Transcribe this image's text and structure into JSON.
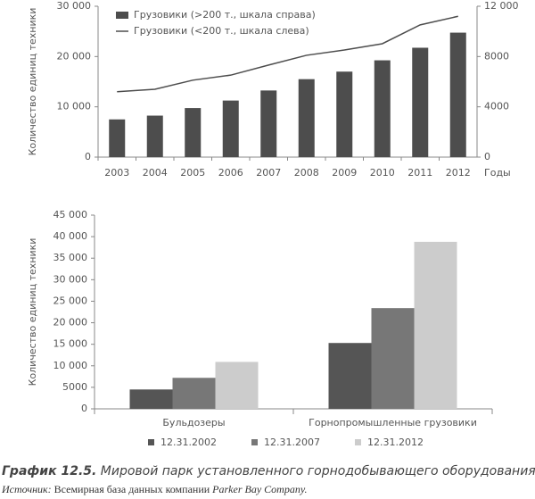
{
  "chart_data": [
    {
      "type": "bar",
      "categories": [
        "2003",
        "2004",
        "2005",
        "2006",
        "2007",
        "2008",
        "2009",
        "2010",
        "2011",
        "2012"
      ],
      "x_label": "Годы",
      "y_label": "Количество единиц техники",
      "series": [
        {
          "name": "Грузовики (>200 т., шкала справа)",
          "type": "bar",
          "axis": "y2",
          "color": "#4d4d4d",
          "values": [
            3000,
            3300,
            3900,
            4500,
            5300,
            6200,
            6800,
            7700,
            8700,
            9900
          ]
        },
        {
          "name": "Грузовики (<200 т., шкала слева)",
          "type": "line",
          "color": "#4d4d4d",
          "values": [
            13000,
            13500,
            15300,
            16300,
            18300,
            20250,
            21300,
            22550,
            26300,
            28000
          ]
        }
      ],
      "ylim": [
        0,
        30000
      ],
      "yticks": [
        0,
        {
          "value": 10000,
          "label": "10 000"
        },
        {
          "value": 20000,
          "label": "20 000"
        },
        {
          "value": 30000,
          "label": "30 000"
        }
      ],
      "y2lim": [
        0,
        12000
      ],
      "y2ticks": [
        0,
        4000,
        8000,
        {
          "value": 12000,
          "label": "12 000"
        }
      ],
      "legend": "top-left"
    },
    {
      "type": "grouped-bar",
      "categories": [
        "Бульдозеры",
        "Горнопромышленные грузовики"
      ],
      "y_label": "Количество единиц техники",
      "series": [
        {
          "name": "12.31.2002",
          "color": "#555555",
          "values": [
            4500,
            15300
          ]
        },
        {
          "name": "12.31.2007",
          "color": "#777777",
          "values": [
            7200,
            23400
          ]
        },
        {
          "name": "12.31.2012",
          "color": "#cccccc",
          "values": [
            10900,
            38800
          ]
        }
      ],
      "ylim": [
        0,
        45000
      ],
      "yticks": [
        0,
        5000,
        {
          "value": 10000,
          "label": "10 000"
        },
        {
          "value": 15000,
          "label": "15 000"
        },
        {
          "value": 20000,
          "label": "20 000"
        },
        {
          "value": 25000,
          "label": "25 000"
        },
        {
          "value": 30000,
          "label": "30 000"
        },
        {
          "value": 35000,
          "label": "35 000"
        },
        {
          "value": 40000,
          "label": "40 000"
        },
        {
          "value": 45000,
          "label": "45 000"
        }
      ],
      "legend": "bottom"
    }
  ],
  "caption": {
    "label": "График 12.5.",
    "text": "Мировой парк установленного горнодобывающего оборудования",
    "source_label": "Источник:",
    "source_text": "Всемирная база данных компании",
    "source_company": "Parker Bay Company."
  }
}
